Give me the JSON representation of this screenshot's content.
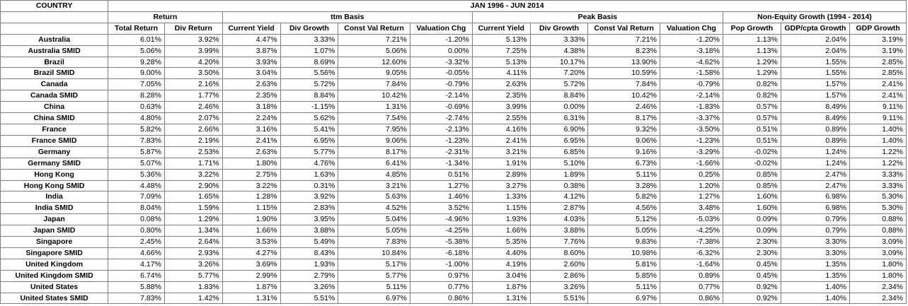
{
  "header": {
    "country_label": "COUNTRY",
    "period_label": "JAN 1996 - JUN 2014",
    "groups": [
      "Return",
      "ttm Basis",
      "Peak Basis",
      "Non-Equity Growth (1994 - 2014)"
    ],
    "columns": [
      "Total Return",
      "Div Return",
      "Current Yield",
      "Div Growth",
      "Const Val Return",
      "Valuation Chg",
      "Current Yield",
      "Div Growth",
      "Const Val Return",
      "Valuation Chg",
      "Pop Growth",
      "GDP/cpta Growth",
      "GDP Growth"
    ]
  },
  "rows": [
    {
      "country": "Australia",
      "values": [
        "6.01%",
        "3.92%",
        "4.47%",
        "3.33%",
        "7.21%",
        "-1.20%",
        "5.13%",
        "3.33%",
        "7.21%",
        "-1.20%",
        "1.13%",
        "2.04%",
        "3.19%"
      ]
    },
    {
      "country": "Australia SMID",
      "values": [
        "5.06%",
        "3.99%",
        "3.87%",
        "1.07%",
        "5.06%",
        "0.00%",
        "7.25%",
        "4.38%",
        "8.23%",
        "-3.18%",
        "1.13%",
        "2.04%",
        "3.19%"
      ]
    },
    {
      "country": "Brazil",
      "values": [
        "9.28%",
        "4.20%",
        "3.93%",
        "8.69%",
        "12.60%",
        "-3.32%",
        "5.13%",
        "10.17%",
        "13.90%",
        "-4.62%",
        "1.29%",
        "1.55%",
        "2.85%"
      ]
    },
    {
      "country": "Brazil SMID",
      "values": [
        "9.00%",
        "3.50%",
        "3.04%",
        "5.56%",
        "9.05%",
        "-0.05%",
        "4.11%",
        "7.20%",
        "10.59%",
        "-1.58%",
        "1.29%",
        "1.55%",
        "2.85%"
      ]
    },
    {
      "country": "Canada",
      "values": [
        "7.05%",
        "2.16%",
        "2.63%",
        "5.72%",
        "7.84%",
        "-0.79%",
        "2.63%",
        "5.72%",
        "7.84%",
        "-0.79%",
        "0.82%",
        "1.57%",
        "2.41%"
      ]
    },
    {
      "country": "Canada SMID",
      "values": [
        "8.28%",
        "1.77%",
        "2.35%",
        "8.84%",
        "10.42%",
        "-2.14%",
        "2.35%",
        "8.84%",
        "10.42%",
        "-2.14%",
        "0.82%",
        "1.57%",
        "2.41%"
      ]
    },
    {
      "country": "China",
      "values": [
        "0.63%",
        "2.46%",
        "3.18%",
        "-1.15%",
        "1.31%",
        "-0.69%",
        "3.99%",
        "0.00%",
        "2.46%",
        "-1.83%",
        "0.57%",
        "8.49%",
        "9.11%"
      ]
    },
    {
      "country": "China SMID",
      "values": [
        "4.80%",
        "2.07%",
        "2.24%",
        "5.62%",
        "7.54%",
        "-2.74%",
        "2.55%",
        "6.31%",
        "8.17%",
        "-3.37%",
        "0.57%",
        "8.49%",
        "9.11%"
      ]
    },
    {
      "country": "France",
      "values": [
        "5.82%",
        "2.66%",
        "3.16%",
        "5.41%",
        "7.95%",
        "-2.13%",
        "4.16%",
        "6.90%",
        "9.32%",
        "-3.50%",
        "0.51%",
        "0.89%",
        "1.40%"
      ]
    },
    {
      "country": "France SMID",
      "values": [
        "7.83%",
        "2.19%",
        "2.41%",
        "6.95%",
        "9.06%",
        "-1.23%",
        "2.41%",
        "6.95%",
        "9.06%",
        "-1.23%",
        "0.51%",
        "0.89%",
        "1.40%"
      ]
    },
    {
      "country": "Germany",
      "values": [
        "5.87%",
        "2.53%",
        "2.63%",
        "5.77%",
        "8.17%",
        "-2.31%",
        "3.21%",
        "6.85%",
        "9.16%",
        "-3.29%",
        "-0.02%",
        "1.24%",
        "1.22%"
      ]
    },
    {
      "country": "Germany SMID",
      "values": [
        "5.07%",
        "1.71%",
        "1.80%",
        "4.76%",
        "6.41%",
        "-1.34%",
        "1.91%",
        "5.10%",
        "6.73%",
        "-1.66%",
        "-0.02%",
        "1.24%",
        "1.22%"
      ]
    },
    {
      "country": "Hong Kong",
      "values": [
        "5.36%",
        "3.22%",
        "2.75%",
        "1.63%",
        "4.85%",
        "0.51%",
        "2.89%",
        "1.89%",
        "5.11%",
        "0.25%",
        "0.85%",
        "2.47%",
        "3.33%"
      ]
    },
    {
      "country": "Hong Kong SMID",
      "values": [
        "4.48%",
        "2.90%",
        "3.22%",
        "0.31%",
        "3.21%",
        "1.27%",
        "3.27%",
        "0.38%",
        "3.28%",
        "1.20%",
        "0.85%",
        "2.47%",
        "3.33%"
      ]
    },
    {
      "country": "India",
      "values": [
        "7.09%",
        "1.65%",
        "1.28%",
        "3.92%",
        "5.63%",
        "1.46%",
        "1.33%",
        "4.12%",
        "5.82%",
        "1.27%",
        "1.60%",
        "6.98%",
        "5.30%"
      ]
    },
    {
      "country": "India SMID",
      "values": [
        "8.04%",
        "1.59%",
        "1.15%",
        "2.83%",
        "4.52%",
        "3.52%",
        "1.15%",
        "2.87%",
        "4.56%",
        "3.48%",
        "1.60%",
        "6.98%",
        "5.30%"
      ]
    },
    {
      "country": "Japan",
      "values": [
        "0.08%",
        "1.29%",
        "1.90%",
        "3.95%",
        "5.04%",
        "-4.96%",
        "1.93%",
        "4.03%",
        "5.12%",
        "-5.03%",
        "0.09%",
        "0.79%",
        "0.88%"
      ]
    },
    {
      "country": "Japan SMID",
      "values": [
        "0.80%",
        "1.34%",
        "1.66%",
        "3.88%",
        "5.05%",
        "-4.25%",
        "1.66%",
        "3.88%",
        "5.05%",
        "-4.25%",
        "0.09%",
        "0.79%",
        "0.88%"
      ]
    },
    {
      "country": "Singapore",
      "values": [
        "2.45%",
        "2.64%",
        "3.53%",
        "5.49%",
        "7.83%",
        "-5.38%",
        "5.35%",
        "7.76%",
        "9.83%",
        "-7.38%",
        "2.30%",
        "3.30%",
        "3.09%"
      ]
    },
    {
      "country": "Singapore SMID",
      "values": [
        "4.66%",
        "2.93%",
        "4.27%",
        "8.43%",
        "10.84%",
        "-6.18%",
        "4.40%",
        "8.60%",
        "10.98%",
        "-6.32%",
        "2.30%",
        "3.30%",
        "3.09%"
      ]
    },
    {
      "country": "United Kingdom",
      "values": [
        "4.17%",
        "3.26%",
        "3.69%",
        "1.93%",
        "5.17%",
        "-1.00%",
        "4.19%",
        "2.60%",
        "5.81%",
        "-1.64%",
        "0.45%",
        "1.35%",
        "1.80%"
      ]
    },
    {
      "country": "United Kingdom SMID",
      "values": [
        "6.74%",
        "5.77%",
        "2.99%",
        "2.79%",
        "5.77%",
        "0.97%",
        "3.04%",
        "2.86%",
        "5.85%",
        "0.89%",
        "0.45%",
        "1.35%",
        "1.80%"
      ]
    },
    {
      "country": "United States",
      "values": [
        "5.88%",
        "1.83%",
        "1.87%",
        "3.26%",
        "5.11%",
        "0.77%",
        "1.87%",
        "3.26%",
        "5.11%",
        "0.77%",
        "0.92%",
        "1.40%",
        "2.34%"
      ]
    },
    {
      "country": "United States SMID",
      "values": [
        "7.83%",
        "1.42%",
        "1.31%",
        "5.51%",
        "6.97%",
        "0.86%",
        "1.31%",
        "5.51%",
        "6.97%",
        "0.86%",
        "0.92%",
        "1.40%",
        "2.34%"
      ]
    }
  ]
}
